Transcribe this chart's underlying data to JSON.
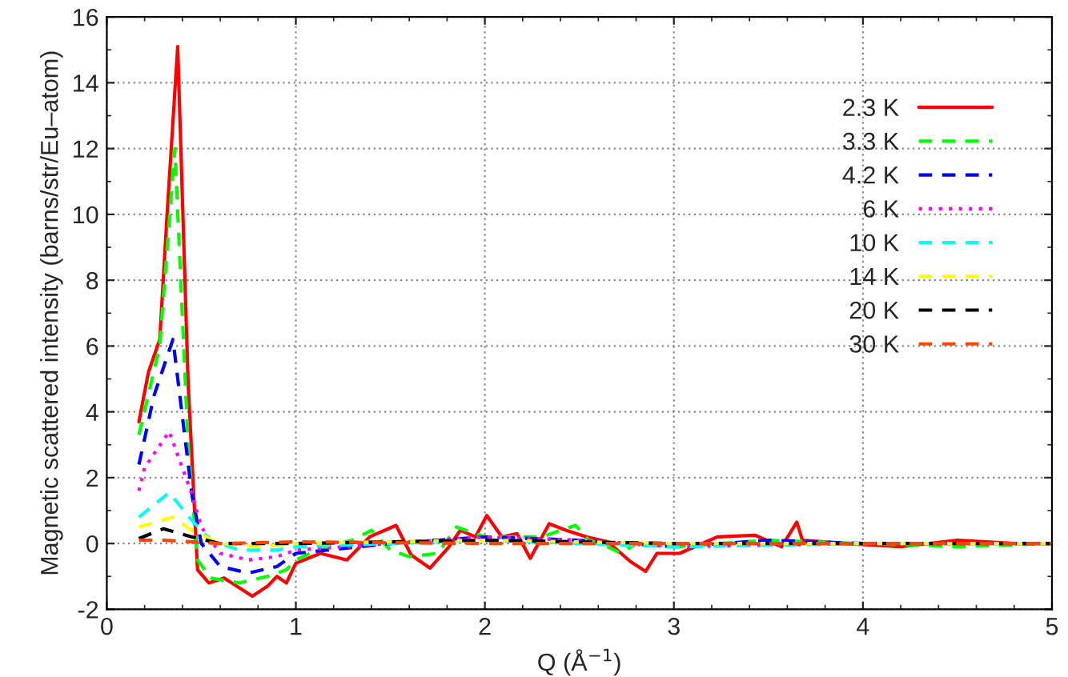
{
  "chart_data": {
    "type": "line",
    "xlabel": "Q (Å$^{−1}$)",
    "ylabel": "Magnetic scattered intensity (barns/str/Eu–atom)",
    "xlim": [
      0,
      5
    ],
    "ylim": [
      -2,
      16
    ],
    "xticks": [
      0,
      1,
      2,
      3,
      4,
      5
    ],
    "yticks": [
      -2,
      0,
      2,
      4,
      6,
      8,
      10,
      12,
      14,
      16
    ],
    "grid": true,
    "legend": "top right",
    "marker": "none",
    "series": [
      {
        "name": "2.3 K",
        "color": "#ff0000",
        "line_style": "solid",
        "x": [
          0.17,
          0.22,
          0.28,
          0.32,
          0.375,
          0.43,
          0.48,
          0.54,
          0.62,
          0.77,
          0.85,
          0.9,
          0.95,
          1.0,
          1.13,
          1.27,
          1.39,
          1.53,
          1.61,
          1.71,
          1.81,
          1.87,
          1.95,
          2.01,
          2.09,
          2.17,
          2.24,
          2.34,
          2.43,
          2.54,
          2.65,
          2.77,
          2.85,
          2.91,
          3.03,
          3.23,
          3.43,
          3.57,
          3.65,
          3.68,
          3.9,
          4.2,
          4.5,
          4.8,
          5.0
        ],
        "values": [
          3.7,
          5.2,
          6.2,
          10.1,
          15.1,
          4.9,
          -0.8,
          -1.2,
          -1.05,
          -1.6,
          -1.3,
          -1.0,
          -1.2,
          -0.6,
          -0.3,
          -0.5,
          0.2,
          0.55,
          -0.35,
          -0.75,
          -0.1,
          0.4,
          0.2,
          0.85,
          0.2,
          0.3,
          -0.45,
          0.6,
          0.4,
          0.2,
          0.05,
          -0.55,
          -0.85,
          -0.3,
          -0.3,
          0.2,
          0.25,
          -0.1,
          0.65,
          0.1,
          0.0,
          -0.1,
          0.1,
          0.0,
          0.0
        ]
      },
      {
        "name": "3.3 K",
        "color": "#00ff00",
        "line_style": "dashed",
        "x": [
          0.17,
          0.28,
          0.32,
          0.36,
          0.43,
          0.48,
          0.55,
          0.7,
          0.85,
          0.95,
          1.0,
          1.15,
          1.3,
          1.4,
          1.5,
          1.6,
          1.75,
          1.85,
          2.0,
          2.3,
          2.48,
          2.55,
          2.65,
          2.72,
          2.8,
          3.0,
          3.5,
          4.0,
          4.5,
          5.0
        ],
        "values": [
          3.3,
          6.0,
          9.0,
          12.0,
          3.0,
          -0.5,
          -1.05,
          -1.2,
          -1.0,
          -0.8,
          -0.5,
          -0.1,
          0.1,
          0.4,
          -0.2,
          -0.4,
          -0.3,
          0.5,
          0.2,
          0.2,
          0.55,
          0.1,
          -0.1,
          -0.3,
          0.0,
          -0.1,
          0.1,
          0.0,
          -0.1,
          0.0
        ]
      },
      {
        "name": "4.2 K",
        "color": "#0000ff",
        "line_style": "dashed",
        "x": [
          0.17,
          0.25,
          0.35,
          0.45,
          0.5,
          0.6,
          0.75,
          0.9,
          1.0,
          1.5,
          2.0,
          2.5,
          3.0,
          3.5,
          4.0,
          5.0
        ],
        "values": [
          2.4,
          4.5,
          6.2,
          1.5,
          0.0,
          -0.7,
          -0.9,
          -0.7,
          -0.3,
          0.0,
          0.2,
          0.1,
          -0.1,
          0.1,
          0.0,
          0.0
        ]
      },
      {
        "name": "6 K",
        "color": "#ff00ff",
        "line_style": "dotted",
        "x": [
          0.17,
          0.2,
          0.33,
          0.45,
          0.5,
          0.6,
          0.75,
          0.9,
          1.0,
          1.5,
          2.0,
          2.5,
          3.0,
          4.0,
          5.0
        ],
        "values": [
          1.6,
          2.3,
          3.4,
          1.5,
          0.5,
          -0.3,
          -0.5,
          -0.4,
          -0.2,
          0.0,
          0.2,
          0.1,
          -0.1,
          0.0,
          0.0
        ]
      },
      {
        "name": "10 K",
        "color": "#00ffff",
        "line_style": "dashed",
        "x": [
          0.17,
          0.33,
          0.45,
          0.55,
          0.7,
          0.9,
          1.0,
          2.0,
          3.0,
          4.0,
          5.0
        ],
        "values": [
          0.8,
          1.55,
          0.7,
          0.1,
          -0.2,
          -0.2,
          -0.1,
          0.1,
          -0.1,
          0.0,
          0.0
        ]
      },
      {
        "name": "14 K",
        "color": "#ffff00",
        "line_style": "dashed",
        "x": [
          0.17,
          0.35,
          0.45,
          0.6,
          0.8,
          1.0,
          2.0,
          3.0,
          4.0,
          5.0
        ],
        "values": [
          0.5,
          0.8,
          0.4,
          0.0,
          -0.1,
          0.0,
          0.1,
          0.0,
          0.0,
          0.0
        ]
      },
      {
        "name": "20 K",
        "color": "#000000",
        "line_style": "dashed",
        "x": [
          0.17,
          0.3,
          0.45,
          0.6,
          1.0,
          2.0,
          3.0,
          4.0,
          5.0
        ],
        "values": [
          0.15,
          0.45,
          0.2,
          0.0,
          0.0,
          0.1,
          0.0,
          0.0,
          0.0
        ]
      },
      {
        "name": "30 K",
        "color": "#ff4500",
        "line_style": "dashed",
        "x": [
          0.17,
          0.3,
          0.45,
          0.6,
          1.0,
          2.0,
          3.0,
          4.0,
          5.0
        ],
        "values": [
          0.1,
          0.1,
          0.05,
          0.0,
          0.05,
          0.0,
          0.0,
          0.0,
          0.0
        ]
      }
    ]
  }
}
